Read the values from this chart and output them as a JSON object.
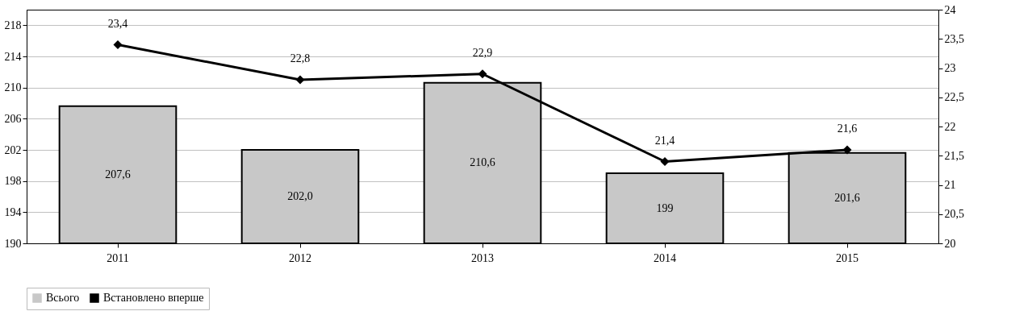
{
  "chart_data": {
    "type": "bar",
    "categories": [
      "2011",
      "2012",
      "2013",
      "2014",
      "2015"
    ],
    "series": [
      {
        "name": "Всього",
        "color": "#c8c8c8",
        "values": [
          207.6,
          202.0,
          210.6,
          199,
          201.6
        ],
        "value_labels": [
          "207,6",
          "202,0",
          "210,6",
          "199",
          "201,6"
        ]
      },
      {
        "name": "Встановлено вперше",
        "type": "line",
        "axis": "y2",
        "color": "#000000",
        "values": [
          23.4,
          22.8,
          22.9,
          21.4,
          21.6
        ],
        "value_labels": [
          "23,4",
          "22,8",
          "22,9",
          "21,4",
          "21,6"
        ]
      }
    ],
    "ylim": [
      190,
      220
    ],
    "yticks": [
      190,
      194,
      198,
      202,
      206,
      210,
      214,
      218
    ],
    "y2lim": [
      20,
      24
    ],
    "y2ticks": [
      20,
      {
        "value": 20.5,
        "label": "20,5"
      },
      21,
      {
        "value": 21.5,
        "label": "21,5"
      },
      22,
      {
        "value": 22.5,
        "label": "22,5"
      },
      23,
      {
        "value": 23.5,
        "label": "23,5"
      },
      24
    ],
    "grid": "y",
    "legend": "bottom",
    "marker": "diamond",
    "line_style": "solid"
  }
}
